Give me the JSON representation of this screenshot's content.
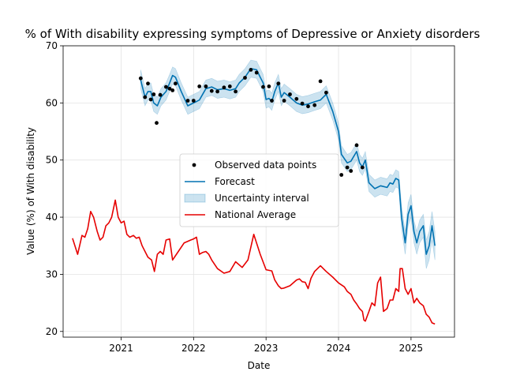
{
  "chart_data": {
    "type": "line",
    "title": "% of With disability expressing symptoms of Depressive or Anxiety disorders",
    "xlabel": "Date",
    "ylabel": "Value (%) of With disability",
    "xlim": [
      2020.2,
      2025.6
    ],
    "ylim": [
      19,
      70
    ],
    "x_ticks": [
      2021,
      2022,
      2023,
      2024,
      2025
    ],
    "x_tick_labels": [
      "2021",
      "2022",
      "2023",
      "2024",
      "2025"
    ],
    "y_ticks": [
      20,
      30,
      40,
      50,
      60,
      70
    ],
    "y_tick_labels": [
      "20",
      "30",
      "40",
      "50",
      "60",
      "70"
    ],
    "grid": true,
    "legend_position": "center",
    "legend": [
      {
        "label": "Observed data points",
        "kind": "marker",
        "color": "#000000"
      },
      {
        "label": "Forecast",
        "kind": "line",
        "color": "#0072B2"
      },
      {
        "label": "Uncertainty interval",
        "kind": "patch",
        "color": "#0072B2"
      },
      {
        "label": "National Average",
        "kind": "line",
        "color": "#e60000"
      }
    ],
    "series": [
      {
        "name": "Observed data points",
        "kind": "scatter",
        "color": "#000000",
        "x": [
          2021.27,
          2021.33,
          2021.37,
          2021.41,
          2021.45,
          2021.49,
          2021.54,
          2021.62,
          2021.67,
          2021.71,
          2021.75,
          2021.92,
          2022.0,
          2022.08,
          2022.17,
          2022.25,
          2022.33,
          2022.42,
          2022.5,
          2022.58,
          2022.71,
          2022.79,
          2022.87,
          2022.96,
          2023.04,
          2023.08,
          2023.17,
          2023.25,
          2023.33,
          2023.42,
          2023.5,
          2023.58,
          2023.67,
          2023.75,
          2023.83,
          2024.04,
          2024.12,
          2024.17,
          2024.25,
          2024.33
        ],
        "y": [
          64.3,
          61.0,
          63.4,
          60.6,
          61.5,
          56.5,
          61.4,
          62.8,
          62.5,
          62.2,
          63.4,
          60.4,
          60.4,
          62.9,
          62.9,
          62.1,
          62.0,
          62.7,
          62.9,
          62.0,
          64.4,
          65.8,
          65.3,
          62.8,
          62.9,
          60.4,
          63.4,
          60.4,
          61.5,
          60.7,
          59.9,
          59.4,
          59.6,
          63.8,
          61.8,
          47.4,
          48.7,
          48.1,
          52.6,
          48.7
        ]
      },
      {
        "name": "Forecast",
        "kind": "line",
        "color": "#0072B2",
        "x": [
          2021.27,
          2021.33,
          2021.37,
          2021.41,
          2021.45,
          2021.5,
          2021.55,
          2021.62,
          2021.67,
          2021.71,
          2021.75,
          2021.83,
          2021.92,
          2022.0,
          2022.08,
          2022.17,
          2022.25,
          2022.33,
          2022.42,
          2022.5,
          2022.58,
          2022.63,
          2022.71,
          2022.79,
          2022.87,
          2022.92,
          2022.96,
          2023.0,
          2023.04,
          2023.08,
          2023.12,
          2023.17,
          2023.21,
          2023.25,
          2023.33,
          2023.42,
          2023.5,
          2023.58,
          2023.67,
          2023.75,
          2023.79,
          2023.83,
          2023.92,
          2024.0,
          2024.04,
          2024.12,
          2024.17,
          2024.25,
          2024.29,
          2024.33,
          2024.37,
          2024.42,
          2024.5,
          2024.58,
          2024.67,
          2024.71,
          2024.75,
          2024.79,
          2024.83,
          2024.87,
          2024.92,
          2024.96,
          2025.0,
          2025.04,
          2025.08,
          2025.12,
          2025.17,
          2025.21,
          2025.25,
          2025.29,
          2025.33
        ],
        "y": [
          64.0,
          61.0,
          62.0,
          62.0,
          60.0,
          59.5,
          61.0,
          62.0,
          63.5,
          64.8,
          64.5,
          62.0,
          59.5,
          60.0,
          60.5,
          62.5,
          62.8,
          62.3,
          62.5,
          62.2,
          62.5,
          63.5,
          64.5,
          66.0,
          65.8,
          64.5,
          63.5,
          60.6,
          60.8,
          60.2,
          62.0,
          63.5,
          61.0,
          61.8,
          61.0,
          60.0,
          59.6,
          59.8,
          60.2,
          60.5,
          61.0,
          61.5,
          58.5,
          55.0,
          51.0,
          49.5,
          49.8,
          51.5,
          49.5,
          48.8,
          50.0,
          46.0,
          45.0,
          45.5,
          45.2,
          46.0,
          45.8,
          46.8,
          46.5,
          40.0,
          35.5,
          40.5,
          42.0,
          37.5,
          35.5,
          37.5,
          38.5,
          33.5,
          35.0,
          38.5,
          35.0
        ]
      },
      {
        "name": "National Average",
        "kind": "line",
        "color": "#e60000",
        "x": [
          2020.33,
          2020.4,
          2020.46,
          2020.5,
          2020.54,
          2020.58,
          2020.62,
          2020.67,
          2020.71,
          2020.75,
          2020.79,
          2020.83,
          2020.87,
          2020.92,
          2020.96,
          2021.0,
          2021.04,
          2021.08,
          2021.12,
          2021.17,
          2021.21,
          2021.25,
          2021.29,
          2021.33,
          2021.37,
          2021.42,
          2021.46,
          2021.5,
          2021.54,
          2021.58,
          2021.62,
          2021.67,
          2021.71,
          2021.79,
          2021.87,
          2021.96,
          2022.0,
          2022.04,
          2022.08,
          2022.12,
          2022.17,
          2022.21,
          2022.25,
          2022.33,
          2022.42,
          2022.5,
          2022.58,
          2022.67,
          2022.75,
          2022.83,
          2022.92,
          2023.0,
          2023.08,
          2023.12,
          2023.17,
          2023.21,
          2023.25,
          2023.33,
          2023.42,
          2023.46,
          2023.5,
          2023.54,
          2023.58,
          2023.62,
          2023.67,
          2023.75,
          2023.79,
          2023.83,
          2023.92,
          2024.0,
          2024.08,
          2024.12,
          2024.17,
          2024.21,
          2024.25,
          2024.29,
          2024.33,
          2024.35,
          2024.37,
          2024.42,
          2024.46,
          2024.5,
          2024.54,
          2024.58,
          2024.62,
          2024.67,
          2024.71,
          2024.75,
          2024.79,
          2024.83,
          2024.85,
          2024.88,
          2024.92,
          2024.96,
          2025.0,
          2025.04,
          2025.08,
          2025.12,
          2025.17,
          2025.21,
          2025.25,
          2025.29,
          2025.33
        ],
        "y": [
          36.3,
          33.5,
          36.8,
          36.5,
          38.0,
          41.0,
          40.0,
          37.5,
          36.0,
          36.5,
          38.5,
          39.0,
          40.0,
          43.0,
          40.0,
          39.0,
          39.3,
          37.0,
          36.5,
          36.8,
          36.3,
          36.5,
          35.0,
          34.0,
          33.0,
          32.5,
          30.5,
          33.5,
          34.0,
          33.5,
          36.0,
          36.2,
          32.5,
          34.0,
          35.5,
          36.0,
          36.2,
          36.5,
          33.5,
          33.8,
          34.0,
          33.5,
          32.5,
          31.0,
          30.2,
          30.5,
          32.2,
          31.2,
          32.5,
          37.0,
          33.5,
          30.8,
          30.6,
          29.0,
          28.0,
          27.5,
          27.6,
          28.0,
          29.0,
          29.2,
          28.7,
          28.6,
          27.5,
          29.3,
          30.5,
          31.5,
          31.0,
          30.5,
          29.5,
          28.5,
          27.8,
          27.0,
          26.5,
          25.5,
          24.8,
          24.0,
          23.5,
          22.0,
          21.8,
          23.5,
          25.0,
          24.5,
          28.5,
          29.5,
          23.5,
          24.0,
          25.5,
          25.5,
          27.5,
          27.0,
          31.0,
          31.0,
          27.5,
          26.5,
          27.5,
          25.0,
          25.8,
          25.0,
          24.5,
          23.0,
          22.5,
          21.5,
          21.3
        ]
      }
    ],
    "uncertainty": {
      "name": "Uncertainty interval",
      "color": "#0072B2",
      "x": [
        2021.27,
        2021.33,
        2021.37,
        2021.41,
        2021.45,
        2021.5,
        2021.55,
        2021.62,
        2021.67,
        2021.71,
        2021.75,
        2021.83,
        2021.92,
        2022.0,
        2022.08,
        2022.17,
        2022.25,
        2022.33,
        2022.42,
        2022.5,
        2022.58,
        2022.63,
        2022.71,
        2022.79,
        2022.87,
        2022.92,
        2022.96,
        2023.0,
        2023.04,
        2023.08,
        2023.12,
        2023.17,
        2023.21,
        2023.25,
        2023.33,
        2023.42,
        2023.5,
        2023.58,
        2023.67,
        2023.75,
        2023.79,
        2023.83,
        2023.92,
        2024.0,
        2024.04,
        2024.12,
        2024.17,
        2024.25,
        2024.29,
        2024.33,
        2024.37,
        2024.42,
        2024.5,
        2024.58,
        2024.67,
        2024.71,
        2024.75,
        2024.79,
        2024.83,
        2024.87,
        2024.92,
        2024.96,
        2025.0,
        2025.04,
        2025.08,
        2025.12,
        2025.17,
        2025.21,
        2025.25,
        2025.29,
        2025.33
      ],
      "lower": [
        62.5,
        59.5,
        60.5,
        60.5,
        58.5,
        58.0,
        59.5,
        60.5,
        62.0,
        63.3,
        63.0,
        60.5,
        58.0,
        58.5,
        59.0,
        61.0,
        61.3,
        60.8,
        61.0,
        60.7,
        61.0,
        62.0,
        63.0,
        64.5,
        64.3,
        63.0,
        62.0,
        59.1,
        59.3,
        58.7,
        60.5,
        62.0,
        59.5,
        60.3,
        59.5,
        58.5,
        58.1,
        58.3,
        58.7,
        59.0,
        59.5,
        60.0,
        57.0,
        53.5,
        49.5,
        48.0,
        48.3,
        50.0,
        48.0,
        47.3,
        48.5,
        44.5,
        43.5,
        44.0,
        43.7,
        44.5,
        44.3,
        45.3,
        45.0,
        38.0,
        33.5,
        38.5,
        40.0,
        35.5,
        33.5,
        35.5,
        36.5,
        31.0,
        32.5,
        36.0,
        32.5
      ],
      "upper": [
        65.8,
        62.5,
        63.5,
        63.5,
        61.5,
        61.0,
        62.5,
        63.5,
        65.0,
        66.3,
        66.0,
        63.5,
        61.0,
        61.5,
        62.0,
        64.0,
        64.3,
        63.8,
        64.0,
        63.7,
        64.0,
        65.0,
        66.0,
        67.5,
        67.3,
        66.0,
        65.0,
        62.1,
        62.3,
        61.7,
        63.5,
        65.0,
        62.5,
        63.3,
        62.5,
        61.5,
        61.1,
        61.3,
        61.7,
        62.0,
        62.5,
        63.0,
        60.0,
        56.5,
        52.5,
        51.0,
        51.3,
        53.0,
        51.0,
        50.3,
        51.5,
        47.5,
        46.5,
        47.0,
        46.7,
        47.5,
        47.3,
        48.3,
        48.0,
        42.0,
        37.5,
        42.5,
        44.0,
        39.5,
        37.5,
        39.5,
        40.5,
        36.0,
        37.5,
        41.0,
        37.5
      ]
    }
  }
}
